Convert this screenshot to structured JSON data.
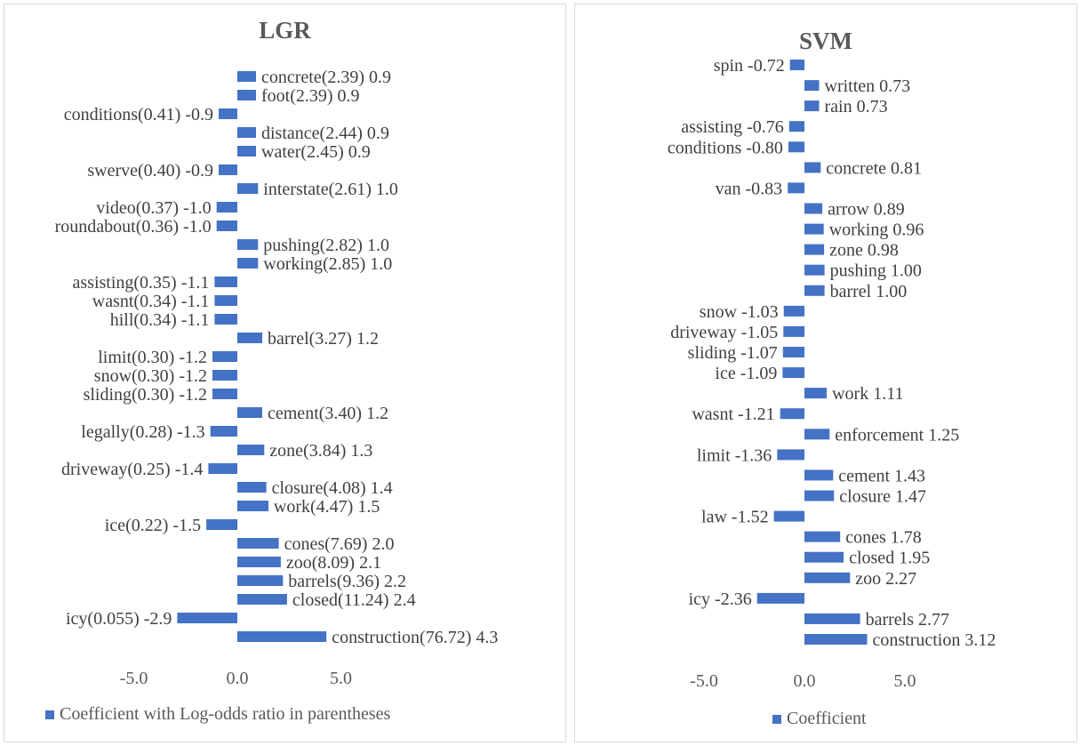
{
  "colors": {
    "bar": "#4472c4",
    "text": "#404040",
    "border": "#d9d9d9"
  },
  "chart_data": [
    {
      "type": "bar",
      "orientation": "horizontal",
      "title": "LGR",
      "legend": "Coefficient with Log-odds ratio in parentheses",
      "legend_position": "bottom",
      "grid": false,
      "xlim": [
        -5,
        5
      ],
      "xticks": [
        "-5.0",
        "0.0",
        "5.0"
      ],
      "categories": [
        "concrete(2.39) 0.9",
        "foot(2.39) 0.9",
        "conditions(0.41) -0.9",
        "distance(2.44) 0.9",
        "water(2.45) 0.9",
        "swerve(0.40) -0.9",
        "interstate(2.61) 1.0",
        "video(0.37) -1.0",
        "roundabout(0.36) -1.0",
        "pushing(2.82) 1.0",
        "working(2.85) 1.0",
        "assisting(0.35) -1.1",
        "wasnt(0.34) -1.1",
        "hill(0.34) -1.1",
        "barrel(3.27) 1.2",
        "limit(0.30) -1.2",
        "snow(0.30) -1.2",
        "sliding(0.30) -1.2",
        "cement(3.40) 1.2",
        "legally(0.28) -1.3",
        "zone(3.84) 1.3",
        "driveway(0.25) -1.4",
        "closure(4.08) 1.4",
        "work(4.47) 1.5",
        "ice(0.22) -1.5",
        "cones(7.69) 2.0",
        "zoo(8.09) 2.1",
        "barrels(9.36) 2.2",
        "closed(11.24) 2.4",
        "icy(0.055) -2.9",
        "construction(76.72) 4.3"
      ],
      "values": [
        0.9,
        0.9,
        -0.9,
        0.9,
        0.9,
        -0.9,
        1.0,
        -1.0,
        -1.0,
        1.0,
        1.0,
        -1.1,
        -1.1,
        -1.1,
        1.2,
        -1.2,
        -1.2,
        -1.2,
        1.2,
        -1.3,
        1.3,
        -1.4,
        1.4,
        1.5,
        -1.5,
        2.0,
        2.1,
        2.2,
        2.4,
        -2.9,
        4.3
      ]
    },
    {
      "type": "bar",
      "orientation": "horizontal",
      "title": "SVM",
      "legend": "Coefficient",
      "legend_position": "bottom",
      "grid": false,
      "xlim": [
        -5,
        5
      ],
      "xticks": [
        "-5.0",
        "0.0",
        "5.0"
      ],
      "categories": [
        "spin -0.72",
        "written 0.73",
        "rain 0.73",
        "assisting -0.76",
        "conditions -0.80",
        "concrete 0.81",
        "van -0.83",
        "arrow 0.89",
        "working 0.96",
        "zone 0.98",
        "pushing 1.00",
        "barrel 1.00",
        "snow -1.03",
        "driveway -1.05",
        "sliding -1.07",
        "ice -1.09",
        "work 1.11",
        "wasnt -1.21",
        "enforcement 1.25",
        "limit -1.36",
        "cement 1.43",
        "closure 1.47",
        "law -1.52",
        "cones 1.78",
        "closed 1.95",
        "zoo 2.27",
        "icy -2.36",
        "barrels 2.77",
        "construction 3.12"
      ],
      "values": [
        -0.72,
        0.73,
        0.73,
        -0.76,
        -0.8,
        0.81,
        -0.83,
        0.89,
        0.96,
        0.98,
        1.0,
        1.0,
        -1.03,
        -1.05,
        -1.07,
        -1.09,
        1.11,
        -1.21,
        1.25,
        -1.36,
        1.43,
        1.47,
        -1.52,
        1.78,
        1.95,
        2.27,
        -2.36,
        2.77,
        3.12
      ]
    }
  ]
}
